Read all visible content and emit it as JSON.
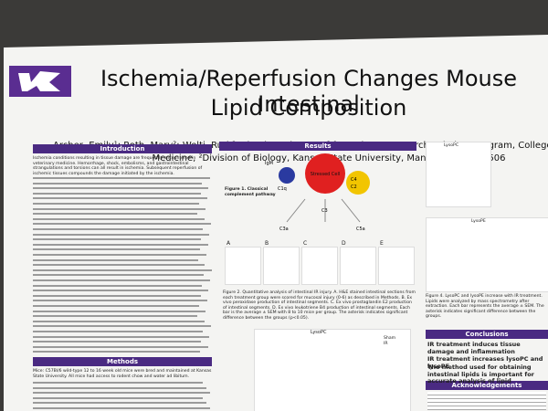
{
  "header": {
    "title_line1": "Ischemia/Reperfusion Changes Mouse Intestinal",
    "title_line2": "Lipid Composition",
    "authors_line1": "Archer, Emily¹; Roth, Mary²; Welti, Ruth²; Fleming, Sherry D.² ¹Veterinary Research Scholars Program, College of Veterinary",
    "authors_line2": "Medicine, ²Division of Biology, Kansas State University, Manhattan, KS 66506"
  },
  "sections": {
    "introduction": "Introduction",
    "results": "Results",
    "methods": "Methods",
    "conclusions": "Conclusions",
    "acknowledgements": "Acknowledgements"
  },
  "introduction_text": "Ischemia conditions resulting in tissue damage are frequently encountered in veterinary medicine. Hemorrhage, shock, embolisms, and gastrointestinal strangulations and torsions can all result in ischemia. Subsequent reperfusion of ischemic tissues compounds the damage initiated by the ischemia.",
  "methods_text": "Mice: C57Bl/6 wild-type 12 to 16 week old mice were bred and maintained at Kansas State University. All mice had access to rodent chow and water ad libitum.",
  "figure1": {
    "caption": "Figure 1. Classical complement pathway",
    "labels": [
      "IgM",
      "Stressed Cell",
      "C1q",
      "C4",
      "C2",
      "C3",
      "C3a",
      "C5a"
    ]
  },
  "figure2": {
    "panels": [
      "A",
      "B",
      "C",
      "D",
      "E"
    ],
    "caption": "Figure 2. Quantitative analysis of intestinal IR injury. A. H&E stained intestinal sections from each treatment group were scored for mucosal injury (0-6) as described in Methods. B. Ex vivo peroxidase production of intestinal segments. C. Ex vivo prostaglandin E2 production of intestinal segments. D. Ex vivo leukotriene B4 production of intestinal segments. Each bar is the average ± SEM with 8 to 10 mice per group. The asterisk indicates significant difference between the groups (p<0.05)."
  },
  "figure3": {
    "title": "LysoPC",
    "legend": [
      "Sham",
      "IR"
    ]
  },
  "figure4": {
    "titles": [
      "LysoPC",
      "LysoPE"
    ],
    "caption": "Figure 4. LysoPC and lysoPE increase with IR treatment. Lipids were analyzed by mass spectrometry after extraction. Each bar represents the average ± SEM. The asterisk indicates significant difference between the groups."
  },
  "conclusions": [
    "IR treatment induces tissue damage and inflammation",
    "IR treatment increases lysoPC and lysoPE",
    "The method used for obtaining intestinal lipids is important for accurate analysis of lipid"
  ]
}
